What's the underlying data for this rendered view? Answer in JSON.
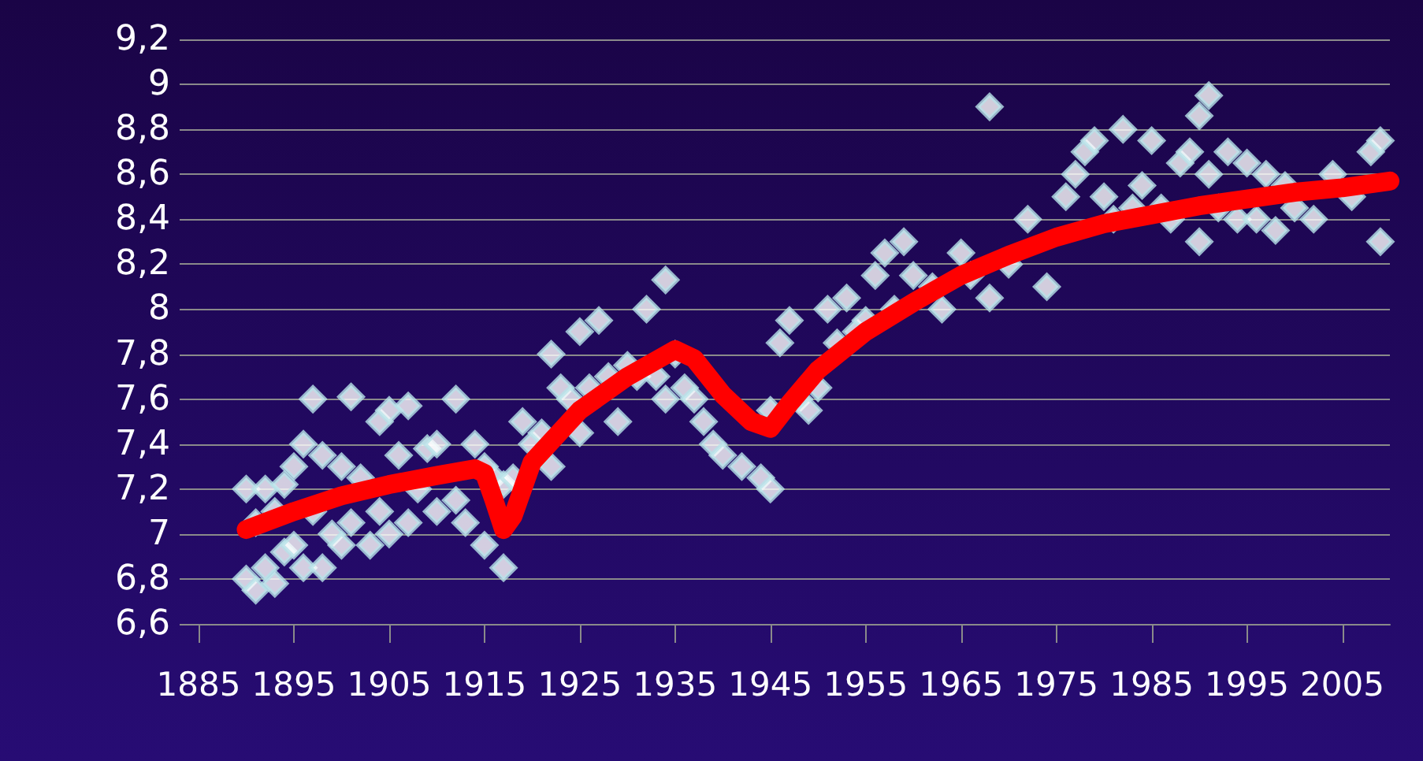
{
  "chart_data": {
    "type": "scatter",
    "marker": "diamond",
    "grid": "y",
    "xlim": [
      1885,
      2010
    ],
    "xticks": [
      1885,
      1895,
      1905,
      1915,
      1925,
      1935,
      1945,
      1955,
      1965,
      1975,
      1985,
      1995,
      2005
    ],
    "ylim": [
      6.6,
      9.2
    ],
    "yticks": [
      {
        "value": 6.6,
        "label": "6,6"
      },
      {
        "value": 6.8,
        "label": "6,8"
      },
      7,
      {
        "value": 7.2,
        "label": "7,2"
      },
      {
        "value": 7.4,
        "label": "7,4"
      },
      {
        "value": 7.6,
        "label": "7,6"
      },
      {
        "value": 7.8,
        "label": "7,8"
      },
      8,
      {
        "value": 8.2,
        "label": "8,2"
      },
      {
        "value": 8.4,
        "label": "8,4"
      },
      {
        "value": 8.6,
        "label": "8,6"
      },
      {
        "value": 8.8,
        "label": "8,8"
      },
      9,
      {
        "value": 9.2,
        "label": "9,2"
      }
    ],
    "series": [
      {
        "color": "#b8e2e8",
        "x": [
          1890,
          1890,
          1891,
          1891,
          1892,
          1892,
          1893,
          1893,
          1894,
          1894,
          1895,
          1895,
          1896,
          1896,
          1897,
          1897,
          1898,
          1898,
          1899,
          1900,
          1900,
          1901,
          1901,
          1902,
          1903,
          1904,
          1904,
          1905,
          1905,
          1906,
          1907,
          1907,
          1908,
          1909,
          1910,
          1910,
          1912,
          1912,
          1913,
          1914,
          1915,
          1915,
          1916,
          1917,
          1917,
          1918,
          1919,
          1920,
          1921,
          1922,
          1922,
          1923,
          1924,
          1925,
          1925,
          1926,
          1927,
          1928,
          1929,
          1930,
          1931,
          1932,
          1933,
          1934,
          1934,
          1935,
          1936,
          1937,
          1938,
          1939,
          1940,
          1942,
          1944,
          1945,
          1945,
          1946,
          1947,
          1948,
          1949,
          1950,
          1951,
          1952,
          1953,
          1954,
          1955,
          1956,
          1957,
          1958,
          1959,
          1960,
          1962,
          1963,
          1965,
          1966,
          1968,
          1968,
          1970,
          1972,
          1974,
          1976,
          1977,
          1978,
          1979,
          1980,
          1981,
          1982,
          1983,
          1984,
          1985,
          1986,
          1987,
          1988,
          1989,
          1990,
          1990,
          1991,
          1991,
          1992,
          1993,
          1994,
          1995,
          1996,
          1997,
          1998,
          1999,
          2000,
          2002,
          2004,
          2006,
          2008,
          2009,
          2009
        ],
        "values": [
          6.8,
          7.2,
          6.75,
          7.05,
          6.85,
          7.2,
          6.78,
          7.1,
          6.92,
          7.22,
          6.95,
          7.3,
          6.85,
          7.4,
          7.1,
          7.6,
          6.85,
          7.35,
          7.0,
          6.95,
          7.3,
          7.05,
          7.61,
          7.25,
          6.95,
          7.1,
          7.5,
          7.0,
          7.55,
          7.35,
          7.05,
          7.57,
          7.2,
          7.38,
          7.1,
          7.4,
          7.15,
          7.6,
          7.05,
          7.4,
          6.95,
          7.3,
          7.25,
          6.85,
          7.22,
          7.25,
          7.5,
          7.4,
          7.45,
          7.3,
          7.8,
          7.65,
          7.6,
          7.45,
          7.9,
          7.65,
          7.95,
          7.7,
          7.5,
          7.75,
          7.7,
          8.0,
          7.7,
          7.6,
          8.13,
          7.8,
          7.65,
          7.6,
          7.5,
          7.4,
          7.35,
          7.3,
          7.25,
          7.2,
          7.55,
          7.85,
          7.95,
          7.6,
          7.55,
          7.65,
          8.0,
          7.85,
          8.05,
          7.9,
          7.95,
          8.15,
          8.25,
          8.0,
          8.3,
          8.15,
          8.1,
          8.0,
          8.25,
          8.15,
          8.9,
          8.05,
          8.2,
          8.4,
          8.1,
          8.5,
          8.6,
          8.7,
          8.75,
          8.5,
          8.4,
          8.8,
          8.45,
          8.55,
          8.75,
          8.45,
          8.4,
          8.65,
          8.7,
          8.86,
          8.3,
          8.95,
          8.6,
          8.45,
          8.7,
          8.4,
          8.65,
          8.4,
          8.6,
          8.35,
          8.55,
          8.45,
          8.4,
          8.6,
          8.5,
          8.7,
          8.75,
          8.3
        ]
      },
      {
        "type": "line",
        "marker": "none",
        "line_style": "solid",
        "color": "#ff0000",
        "x": [
          1890,
          1895,
          1900,
          1905,
          1910,
          1914,
          1915,
          1916,
          1917,
          1918,
          1920,
          1925,
          1930,
          1935,
          1937,
          1940,
          1943,
          1945,
          1947,
          1950,
          1955,
          1960,
          1965,
          1970,
          1975,
          1980,
          1985,
          1990,
          1995,
          2000,
          2005,
          2010
        ],
        "values": [
          7.02,
          7.1,
          7.17,
          7.22,
          7.26,
          7.29,
          7.27,
          7.15,
          7.02,
          7.08,
          7.32,
          7.55,
          7.7,
          7.82,
          7.78,
          7.62,
          7.5,
          7.47,
          7.58,
          7.73,
          7.9,
          8.03,
          8.15,
          8.24,
          8.32,
          8.38,
          8.42,
          8.46,
          8.49,
          8.52,
          8.54,
          8.57
        ]
      }
    ]
  }
}
